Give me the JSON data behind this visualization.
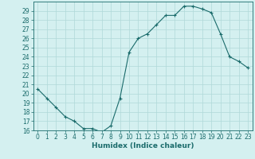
{
  "x": [
    0,
    1,
    2,
    3,
    4,
    5,
    6,
    7,
    8,
    9,
    10,
    11,
    12,
    13,
    14,
    15,
    16,
    17,
    18,
    19,
    20,
    21,
    22,
    23
  ],
  "y": [
    20.5,
    19.5,
    18.5,
    17.5,
    17.0,
    16.2,
    16.2,
    15.8,
    16.5,
    19.5,
    24.5,
    26.0,
    26.5,
    27.5,
    28.5,
    28.5,
    29.5,
    29.5,
    29.2,
    28.8,
    26.5,
    24.0,
    23.5,
    22.8
  ],
  "line_color": "#1a6b6b",
  "marker": "+",
  "bg_color": "#d4f0f0",
  "grid_color": "#b0d8d8",
  "xlabel": "Humidex (Indice chaleur)",
  "ylim": [
    16,
    30
  ],
  "xlim": [
    -0.5,
    23.5
  ],
  "yticks": [
    16,
    17,
    18,
    19,
    20,
    21,
    22,
    23,
    24,
    25,
    26,
    27,
    28,
    29
  ],
  "xticks": [
    0,
    1,
    2,
    3,
    4,
    5,
    6,
    7,
    8,
    9,
    10,
    11,
    12,
    13,
    14,
    15,
    16,
    17,
    18,
    19,
    20,
    21,
    22,
    23
  ],
  "tick_fontsize": 5.5,
  "label_fontsize": 6.5
}
